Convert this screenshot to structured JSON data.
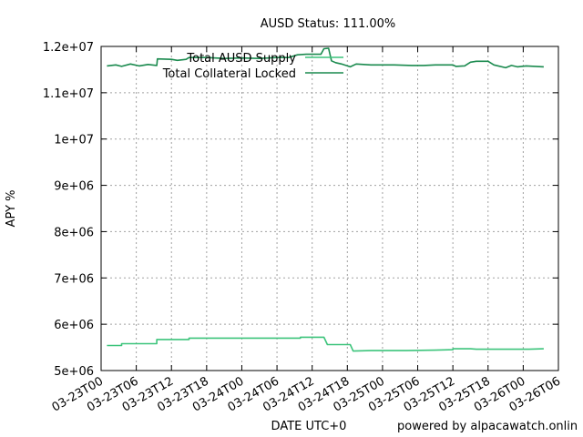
{
  "chart_data": {
    "type": "line",
    "title": "AUSD Status: 111.00%",
    "xlabel": "DATE UTC+0",
    "ylabel": "APY %",
    "footer": "powered by alpacawatch.onlin",
    "x_ticks": [
      "03-23T00",
      "03-23T06",
      "03-23T12",
      "03-23T18",
      "03-24T00",
      "03-24T06",
      "03-24T12",
      "03-24T18",
      "03-25T00",
      "03-25T06",
      "03-25T12",
      "03-25T18",
      "03-26T00",
      "03-26T06"
    ],
    "y_ticks": [
      "5e+06",
      "6e+06",
      "7e+06",
      "8e+06",
      "9e+06",
      "1e+07",
      "1.1e+07",
      "1.2e+07"
    ],
    "xlim_hours": [
      0,
      78
    ],
    "ylim": [
      5000000,
      12000000
    ],
    "grid": true,
    "legend_position": "top-left inside",
    "colors": {
      "supply": "#3cc47b",
      "collateral": "#1a8a4e"
    },
    "series": [
      {
        "name": "Total AUSD Supply",
        "color": "#3cc47b",
        "points": [
          [
            1.0,
            5540000
          ],
          [
            3.5,
            5540000
          ],
          [
            3.5,
            5580000
          ],
          [
            9.5,
            5580000
          ],
          [
            9.5,
            5670000
          ],
          [
            15,
            5670000
          ],
          [
            15,
            5700000
          ],
          [
            34,
            5700000
          ],
          [
            34,
            5720000
          ],
          [
            38,
            5720000
          ],
          [
            38.6,
            5560000
          ],
          [
            42.5,
            5560000
          ],
          [
            43,
            5420000
          ],
          [
            46,
            5430000
          ],
          [
            52,
            5430000
          ],
          [
            57,
            5440000
          ],
          [
            60,
            5450000
          ],
          [
            60,
            5470000
          ],
          [
            63,
            5470000
          ],
          [
            64,
            5460000
          ],
          [
            70,
            5460000
          ],
          [
            73,
            5460000
          ],
          [
            75.5,
            5470000
          ]
        ]
      },
      {
        "name": "Total Collateral Locked",
        "color": "#1a8a4e",
        "points": [
          [
            1.0,
            11580000
          ],
          [
            2.5,
            11600000
          ],
          [
            3.5,
            11570000
          ],
          [
            5,
            11620000
          ],
          [
            6.5,
            11580000
          ],
          [
            8,
            11610000
          ],
          [
            9.5,
            11590000
          ],
          [
            9.6,
            11730000
          ],
          [
            12,
            11720000
          ],
          [
            13,
            11700000
          ],
          [
            14.5,
            11720000
          ],
          [
            15,
            11760000
          ],
          [
            18,
            11760000
          ],
          [
            21,
            11740000
          ],
          [
            24,
            11750000
          ],
          [
            27,
            11740000
          ],
          [
            30,
            11760000
          ],
          [
            32,
            11760000
          ],
          [
            33.5,
            11820000
          ],
          [
            35,
            11830000
          ],
          [
            37.5,
            11830000
          ],
          [
            38,
            11950000
          ],
          [
            38.8,
            11960000
          ],
          [
            39.3,
            11690000
          ],
          [
            40,
            11650000
          ],
          [
            41,
            11620000
          ],
          [
            42.5,
            11560000
          ],
          [
            43.5,
            11620000
          ],
          [
            46,
            11600000
          ],
          [
            50,
            11600000
          ],
          [
            53,
            11590000
          ],
          [
            55,
            11590000
          ],
          [
            57,
            11600000
          ],
          [
            60,
            11600000
          ],
          [
            60.5,
            11570000
          ],
          [
            62,
            11580000
          ],
          [
            63,
            11660000
          ],
          [
            64,
            11680000
          ],
          [
            66,
            11680000
          ],
          [
            67,
            11600000
          ],
          [
            69,
            11540000
          ],
          [
            70,
            11590000
          ],
          [
            71,
            11560000
          ],
          [
            72.5,
            11580000
          ],
          [
            74,
            11570000
          ],
          [
            75.5,
            11560000
          ]
        ]
      }
    ]
  }
}
